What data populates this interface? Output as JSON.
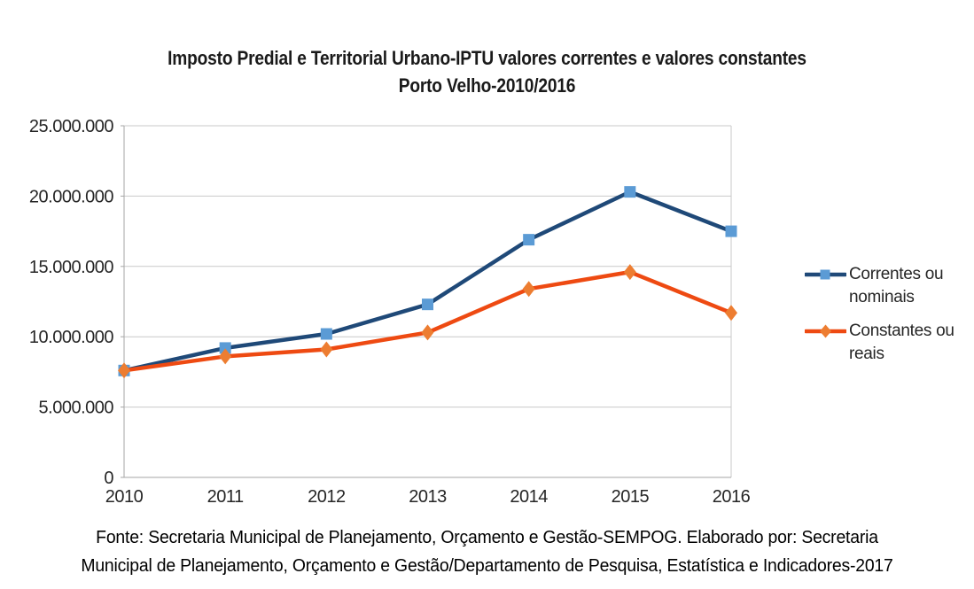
{
  "title": {
    "lines": [
      "Imposto Predial e Territorial Urbano-IPTU valores correntes e valores constantes",
      "Porto Velho-2010/2016"
    ]
  },
  "chart_data": {
    "type": "line",
    "title": "Imposto Predial e Territorial Urbano-IPTU valores correntes e valores constantes Porto Velho-2010/2016",
    "categories": [
      "2010",
      "2011",
      "2012",
      "2013",
      "2014",
      "2015",
      "2016"
    ],
    "series": [
      {
        "name": "Correntes ou nominais",
        "marker": "square",
        "line_color": "#1F4978",
        "marker_color": "#5B9BD5",
        "values": [
          7600000,
          9200000,
          10200000,
          12300000,
          16900000,
          20300000,
          17500000
        ]
      },
      {
        "name": "Constantes ou reais",
        "marker": "diamond",
        "line_color": "#EE4A12",
        "marker_color": "#ED7D31",
        "values": [
          7600000,
          8600000,
          9100000,
          10300000,
          13400000,
          14600000,
          11700000
        ]
      }
    ],
    "xlabel": "",
    "ylabel": "",
    "ylim": [
      0,
      25000000
    ],
    "yticks": [
      0,
      5000000,
      10000000,
      15000000,
      20000000,
      25000000
    ],
    "ytick_labels": [
      "0",
      "5.000.000",
      "10.000.000",
      "15.000.000",
      "20.000.000",
      "25.000.000"
    ],
    "grid": "horizontal",
    "legend_position": "right"
  },
  "colors": {
    "gridline": "#C9C9C9",
    "axis": "#A6A6A6",
    "text": "#262626",
    "background": "#FFFFFF"
  },
  "footer": {
    "lines": [
      "Fonte: Secretaria Municipal de Planejamento, Orçamento e Gestão-SEMPOG. Elaborado por: Secretaria",
      "Municipal de Planejamento, Orçamento e Gestão/Departamento de Pesquisa, Estatística e Indicadores-2017"
    ]
  }
}
